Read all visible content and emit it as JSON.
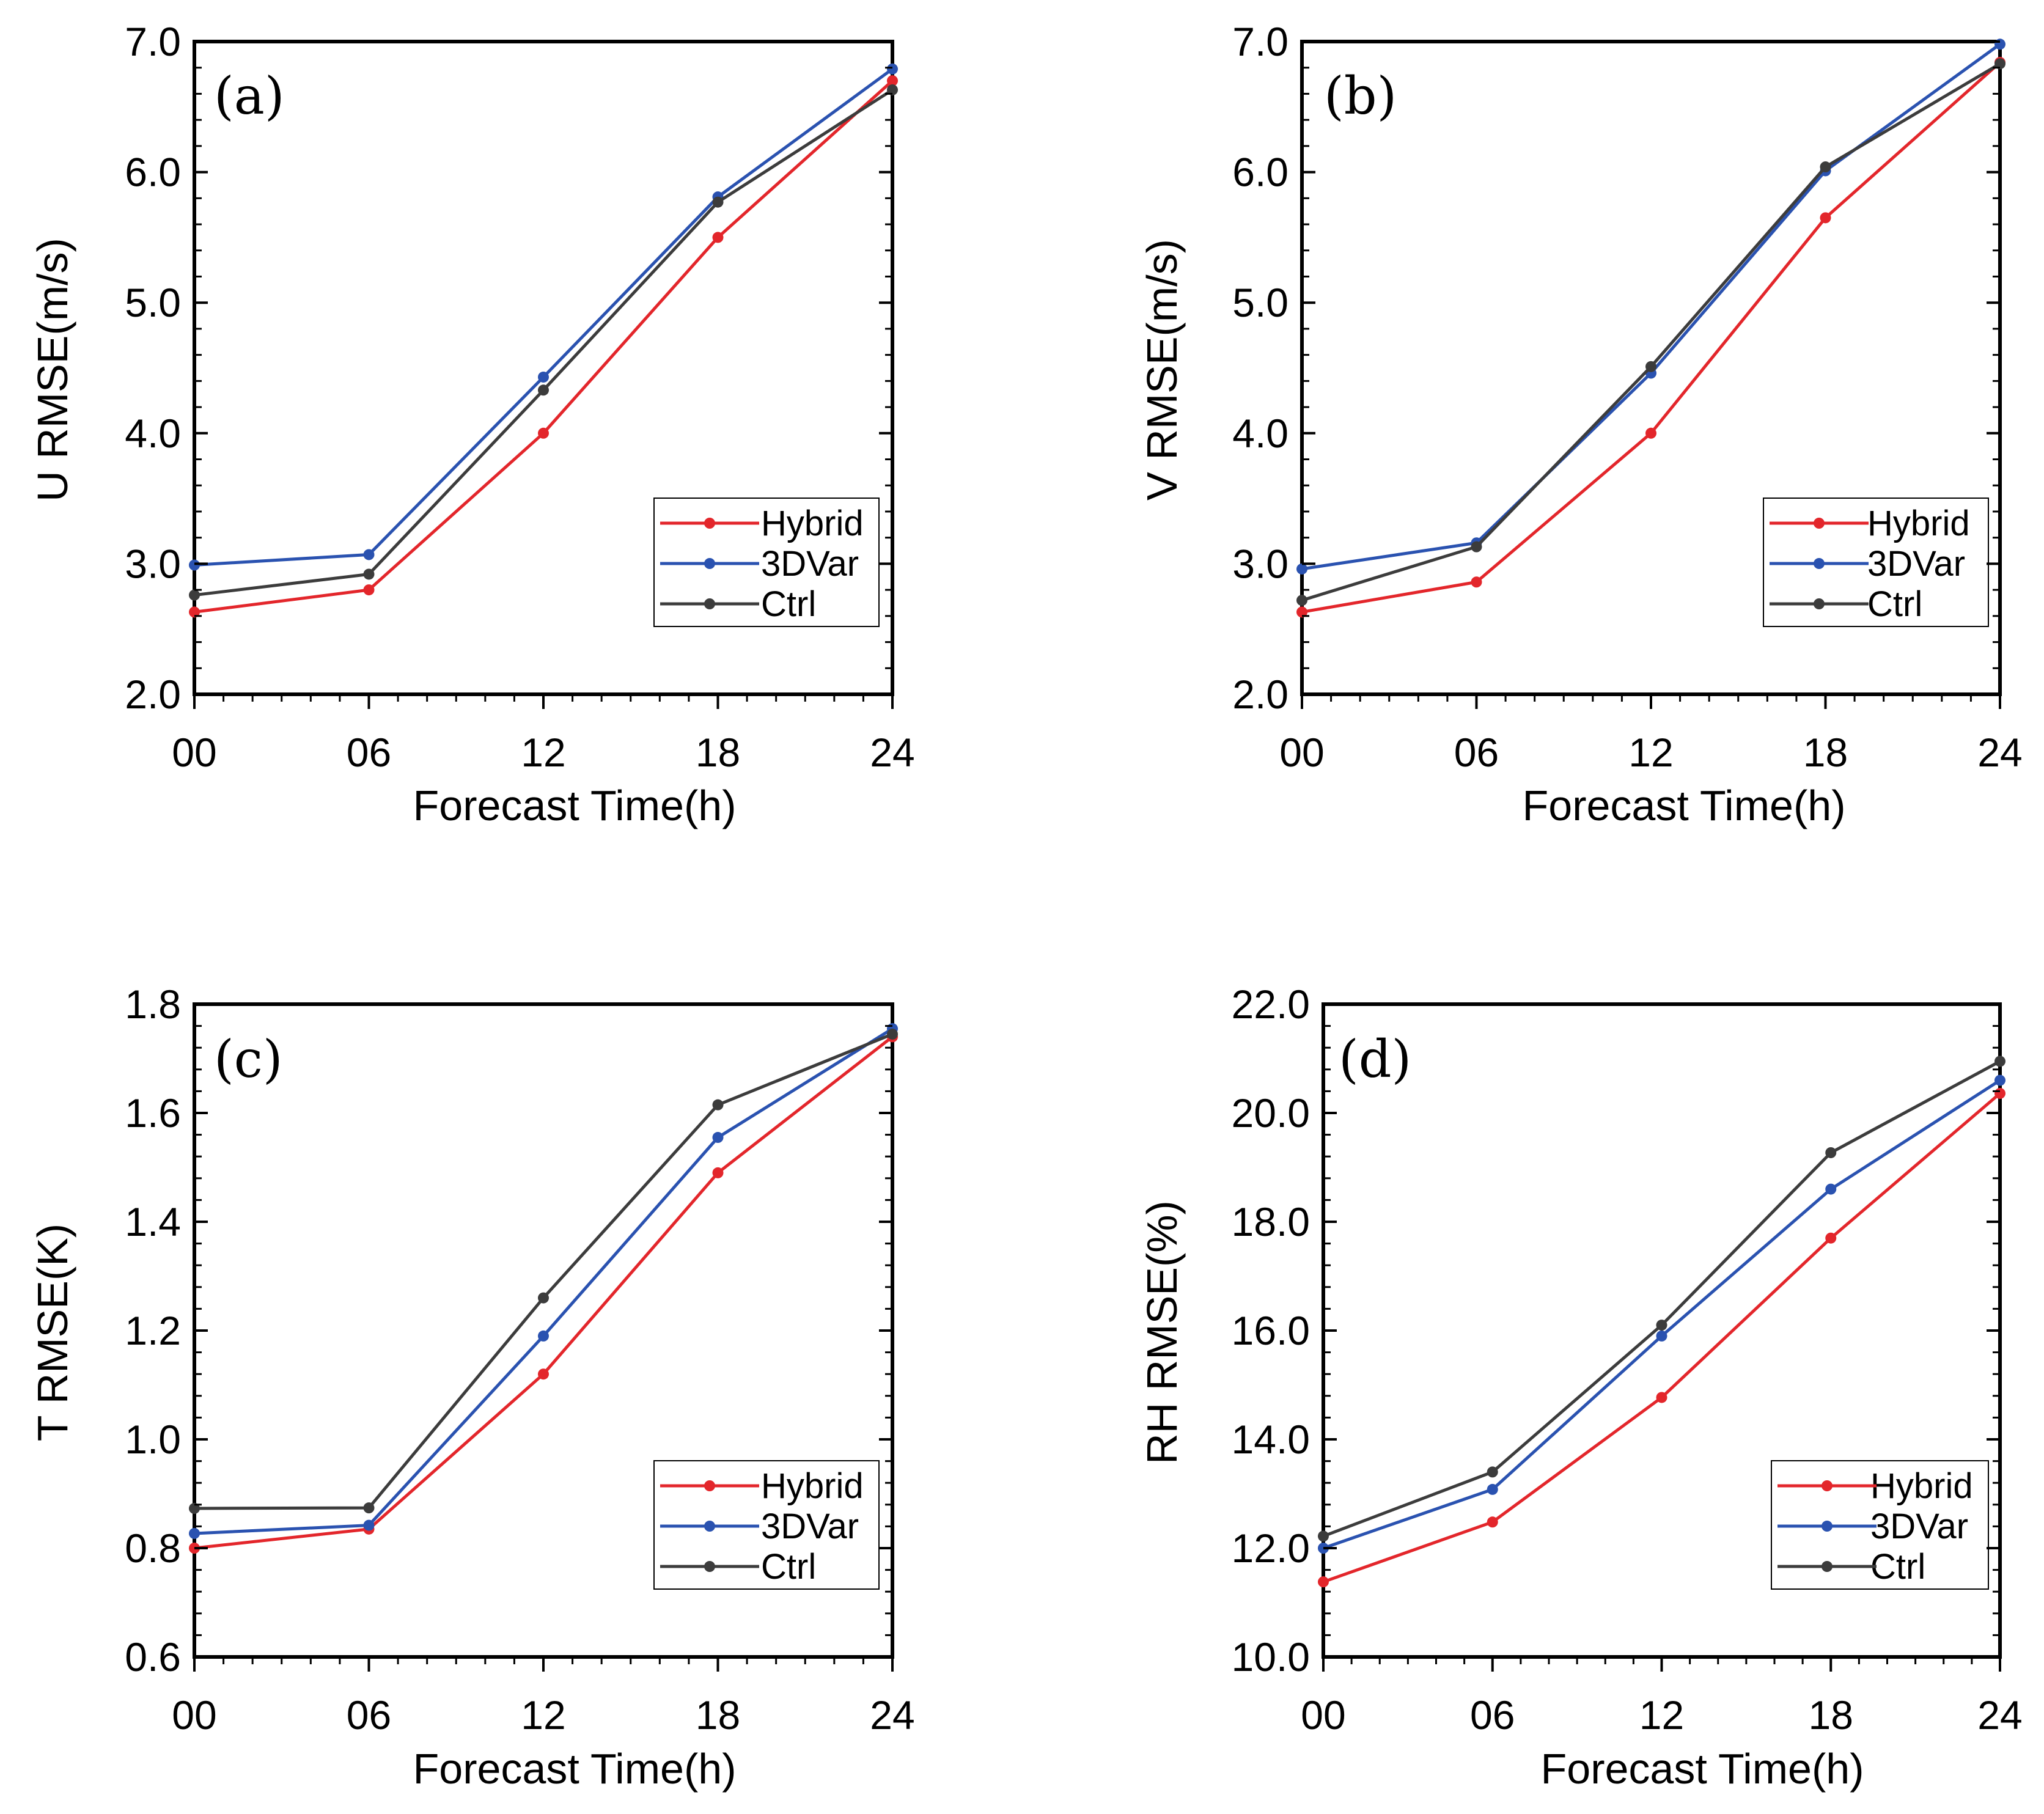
{
  "colors": {
    "Hybrid": "#e3262b",
    "3DVar": "#2a52b0",
    "Ctrl": "#3c3c3c"
  },
  "chart_data": [
    {
      "type": "line",
      "panel": "(a)",
      "xlabel": "Forecast Time(h)",
      "ylabel": "U RMSE(m/s)",
      "categories": [
        "00",
        "06",
        "12",
        "18",
        "24"
      ],
      "ylim": [
        2.0,
        7.0
      ],
      "yticks": [
        "2.0",
        "3.0",
        "4.0",
        "5.0",
        "6.0",
        "7.0"
      ],
      "legend_position": "lower-right",
      "series": [
        {
          "name": "Hybrid",
          "values": [
            2.63,
            2.8,
            4.0,
            5.5,
            6.7
          ]
        },
        {
          "name": "3DVar",
          "values": [
            2.99,
            3.07,
            4.43,
            5.81,
            6.79
          ]
        },
        {
          "name": "Ctrl",
          "values": [
            2.76,
            2.92,
            4.33,
            5.77,
            6.63
          ]
        }
      ]
    },
    {
      "type": "line",
      "panel": "(b)",
      "xlabel": "Forecast Time(h)",
      "ylabel": "V RMSE(m/s)",
      "categories": [
        "00",
        "06",
        "12",
        "18",
        "24"
      ],
      "ylim": [
        2.0,
        7.0
      ],
      "yticks": [
        "2.0",
        "3.0",
        "4.0",
        "5.0",
        "6.0",
        "7.0"
      ],
      "legend_position": "lower-right",
      "series": [
        {
          "name": "Hybrid",
          "values": [
            2.63,
            2.86,
            4.0,
            5.65,
            6.84
          ]
        },
        {
          "name": "3DVar",
          "values": [
            2.96,
            3.16,
            4.46,
            6.01,
            6.98
          ]
        },
        {
          "name": "Ctrl",
          "values": [
            2.72,
            3.13,
            4.51,
            6.04,
            6.83
          ]
        }
      ]
    },
    {
      "type": "line",
      "panel": "(c)",
      "xlabel": "Forecast Time(h)",
      "ylabel": "T RMSE(K)",
      "categories": [
        "00",
        "06",
        "12",
        "18",
        "24"
      ],
      "ylim": [
        0.6,
        1.8
      ],
      "yticks": [
        "0.6",
        "0.8",
        "1.0",
        "1.2",
        "1.4",
        "1.6",
        "1.8"
      ],
      "legend_position": "lower-right",
      "series": [
        {
          "name": "Hybrid",
          "values": [
            0.8,
            0.835,
            1.12,
            1.49,
            1.74
          ]
        },
        {
          "name": "3DVar",
          "values": [
            0.827,
            0.842,
            1.19,
            1.555,
            1.755
          ]
        },
        {
          "name": "Ctrl",
          "values": [
            0.873,
            0.874,
            1.26,
            1.615,
            1.745
          ]
        }
      ]
    },
    {
      "type": "line",
      "panel": "(d)",
      "xlabel": "Forecast Time(h)",
      "ylabel": "RH RMSE(%)",
      "categories": [
        "00",
        "06",
        "12",
        "18",
        "24"
      ],
      "ylim": [
        10.0,
        22.0
      ],
      "yticks": [
        "10.0",
        "12.0",
        "14.0",
        "16.0",
        "18.0",
        "20.0",
        "22.0"
      ],
      "legend_position": "lower-right",
      "series": [
        {
          "name": "Hybrid",
          "values": [
            11.38,
            12.48,
            14.77,
            17.7,
            20.36
          ]
        },
        {
          "name": "3DVar",
          "values": [
            12.0,
            13.08,
            15.9,
            18.6,
            20.6
          ]
        },
        {
          "name": "Ctrl",
          "values": [
            12.22,
            13.4,
            16.1,
            19.27,
            20.95
          ]
        }
      ]
    }
  ]
}
